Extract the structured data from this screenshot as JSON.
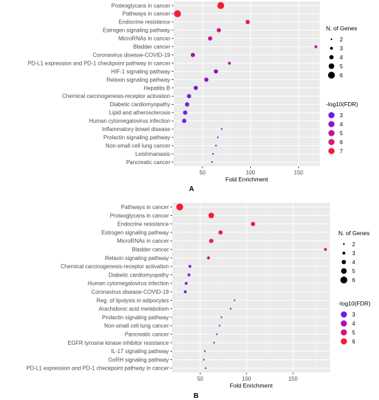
{
  "chart_data": [
    {
      "type": "scatter",
      "panel_label": "A",
      "xlabel": "Fold Enrichment",
      "ylabel": "",
      "xlim": [
        20,
        172
      ],
      "xticks": [
        50,
        100,
        150
      ],
      "tick_labels": [
        "50",
        "100",
        "150"
      ],
      "grid": true,
      "categories": [
        "Proteoglycans in cancer",
        "Pathways in cancer",
        "Endocrine resistance",
        "Estrogen signaling pathway",
        "MicroRNAs in cancer",
        "Bladder cancer",
        "Coronavirus disease-COVID-19",
        "PD-L1 expression and PD-1 checkpoint pathway in cancer",
        "HIF-1 signaling pathway",
        "Relaxin signaling pathway",
        "Hepatitis B",
        "Chemical carcinogenesis-receptor activation",
        "Diabetic cardiomyopathy",
        "Lipid and atherosclerosis",
        "Human cytomegalovirus infection",
        "Inflammatory bowel disease",
        "Prolactin signaling pathway",
        "Non-small cell lung cancer",
        "Leishmaniasis",
        "Pancreatic cancer"
      ],
      "points": [
        {
          "x": 69,
          "genes": 6,
          "fdr": 7.0
        },
        {
          "x": 24,
          "genes": 6,
          "fdr": 7.0
        },
        {
          "x": 97,
          "genes": 4,
          "fdr": 6.0
        },
        {
          "x": 67,
          "genes": 4,
          "fdr": 5.5
        },
        {
          "x": 58,
          "genes": 4,
          "fdr": 5.2
        },
        {
          "x": 168,
          "genes": 3,
          "fdr": 5.0
        },
        {
          "x": 40,
          "genes": 4,
          "fdr": 4.4
        },
        {
          "x": 78,
          "genes": 3,
          "fdr": 4.6
        },
        {
          "x": 64,
          "genes": 4,
          "fdr": 4.0
        },
        {
          "x": 54,
          "genes": 4,
          "fdr": 3.7
        },
        {
          "x": 43,
          "genes": 4,
          "fdr": 3.5
        },
        {
          "x": 36,
          "genes": 4,
          "fdr": 3.3
        },
        {
          "x": 34,
          "genes": 4,
          "fdr": 3.2
        },
        {
          "x": 32,
          "genes": 4,
          "fdr": 3.1
        },
        {
          "x": 31,
          "genes": 4,
          "fdr": 3.0
        },
        {
          "x": 70,
          "genes": 2,
          "fdr": 3.0
        },
        {
          "x": 66,
          "genes": 2,
          "fdr": 3.0
        },
        {
          "x": 64,
          "genes": 2,
          "fdr": 3.0
        },
        {
          "x": 61,
          "genes": 2,
          "fdr": 3.0
        },
        {
          "x": 60,
          "genes": 2,
          "fdr": 3.0
        }
      ],
      "size_legend": {
        "title": "N. of Genes",
        "values": [
          2,
          3,
          4,
          5,
          6
        ]
      },
      "color_legend": {
        "title": "-log10(FDR)",
        "values": [
          3,
          4,
          5,
          6,
          7
        ],
        "colors": [
          "#6f1ee6",
          "#9a12c4",
          "#c0159e",
          "#dd1b72",
          "#f01e32"
        ]
      },
      "legend_position": "right"
    },
    {
      "type": "scatter",
      "panel_label": "B",
      "xlabel": "Fold Enrichment",
      "ylabel": "",
      "xlim": [
        20,
        190
      ],
      "xticks": [
        50,
        100,
        150
      ],
      "tick_labels": [
        "50",
        "100",
        "150"
      ],
      "grid": true,
      "categories": [
        "Pathways in cancer",
        "Proteoglycans in cancer",
        "Endocrine resistance",
        "Estrogen signaling pathway",
        "MicroRNAs in cancer",
        "Bladder cancer",
        "Relaxin signaling pathway",
        "Chemical carcinogenesis-receptor activation",
        "Diabetic cardiomyopathy",
        "Human cytomegalovirus infection",
        "Coronavirus disease-COVID-19",
        "Reg. of lipolysis in adipocytes",
        "Arachidonic acid metabolism",
        "Prolactin signaling pathway",
        "Non-small cell lung cancer",
        "Pancreatic cancer",
        "EGFR tyrosine kinase inhibitor resistance",
        "IL-17 signaling pathway",
        "GnRH signaling pathway",
        "PD-L1 expression and PD-1 checkpoint pathway in cancer"
      ],
      "points": [
        {
          "x": 28,
          "genes": 6,
          "fdr": 6.0
        },
        {
          "x": 62,
          "genes": 5,
          "fdr": 6.0
        },
        {
          "x": 107,
          "genes": 4,
          "fdr": 6.0
        },
        {
          "x": 72,
          "genes": 4,
          "fdr": 5.8
        },
        {
          "x": 62,
          "genes": 4,
          "fdr": 5.6
        },
        {
          "x": 185,
          "genes": 3,
          "fdr": 5.0
        },
        {
          "x": 59,
          "genes": 3,
          "fdr": 4.6
        },
        {
          "x": 39,
          "genes": 3,
          "fdr": 3.5
        },
        {
          "x": 38,
          "genes": 3,
          "fdr": 3.5
        },
        {
          "x": 35,
          "genes": 3,
          "fdr": 3.4
        },
        {
          "x": 34,
          "genes": 3,
          "fdr": 3.3
        },
        {
          "x": 87,
          "genes": 2,
          "fdr": 3.0
        },
        {
          "x": 83,
          "genes": 2,
          "fdr": 3.0
        },
        {
          "x": 73,
          "genes": 2,
          "fdr": 3.0
        },
        {
          "x": 71,
          "genes": 2,
          "fdr": 3.0
        },
        {
          "x": 68,
          "genes": 2,
          "fdr": 3.0
        },
        {
          "x": 65,
          "genes": 2,
          "fdr": 3.0
        },
        {
          "x": 55,
          "genes": 2,
          "fdr": 3.0
        },
        {
          "x": 54,
          "genes": 2,
          "fdr": 3.0
        },
        {
          "x": 56,
          "genes": 2,
          "fdr": 3.0
        }
      ],
      "size_legend": {
        "title": "N. of Genes",
        "values": [
          2,
          3,
          4,
          5,
          6
        ]
      },
      "color_legend": {
        "title": "-log10(FDR)",
        "values": [
          3,
          4,
          5,
          6
        ],
        "colors": [
          "#6f1ee6",
          "#a314bd",
          "#d11881",
          "#f01e32"
        ]
      },
      "legend_position": "right"
    }
  ]
}
